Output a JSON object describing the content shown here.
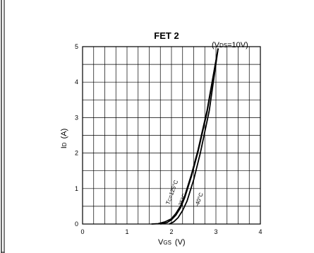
{
  "chart_data": {
    "type": "line",
    "title": "FET 2",
    "condition_main": "(V",
    "condition_sub": "DS",
    "condition_tail": "=10V)",
    "xlabel_main": "V",
    "xlabel_sub": "GS",
    "xlabel_units": "(V)",
    "ylabel_main": "I",
    "ylabel_sub": "D",
    "ylabel_units": "(A)",
    "xlim": [
      0,
      4
    ],
    "ylim": [
      0,
      5
    ],
    "x_ticks": [
      0,
      1,
      2,
      3,
      4
    ],
    "y_ticks": [
      0,
      1,
      2,
      3,
      4,
      5
    ],
    "grid": true,
    "series": [
      {
        "name": "Tc=125°C",
        "x": [
          1.55,
          1.7,
          1.85,
          2.0,
          2.1,
          2.2,
          2.3,
          2.45,
          2.6,
          2.8,
          3.05
        ],
        "y": [
          0.0,
          0.01,
          0.06,
          0.15,
          0.3,
          0.5,
          0.8,
          1.4,
          2.1,
          3.2,
          4.95
        ]
      },
      {
        "name": "25°C",
        "x": [
          1.75,
          1.9,
          2.0,
          2.1,
          2.2,
          2.3,
          2.45,
          2.6,
          2.8,
          3.05
        ],
        "y": [
          0.0,
          0.04,
          0.12,
          0.25,
          0.45,
          0.75,
          1.35,
          2.05,
          3.15,
          4.95
        ]
      },
      {
        "name": "-40°C",
        "x": [
          1.95,
          2.05,
          2.15,
          2.25,
          2.35,
          2.5,
          2.65,
          2.85,
          3.05
        ],
        "y": [
          0.0,
          0.06,
          0.18,
          0.38,
          0.65,
          1.25,
          2.0,
          3.2,
          4.95
        ]
      }
    ],
    "labels": {
      "t125_prefix": "T",
      "t125_sub": "C",
      "t125_rest": "=125°C",
      "t25": "25°C",
      "tm40": "-40°C"
    }
  }
}
